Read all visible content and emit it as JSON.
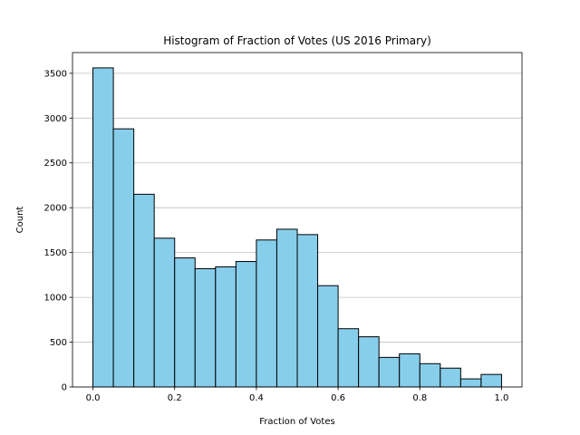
{
  "chart_data": {
    "type": "histogram",
    "title": "Histogram of Fraction of Votes (US 2016 Primary)",
    "x_label": "Fraction of Votes",
    "y_label": "Count",
    "bins": [
      0,
      0.05,
      0.1,
      0.15,
      0.2,
      0.25,
      0.3,
      0.35,
      0.4,
      0.45,
      0.5,
      0.55,
      0.6,
      0.65,
      0.7,
      0.75,
      0.8,
      0.85,
      0.9,
      0.95,
      1.0
    ],
    "values": [
      3560,
      2880,
      2150,
      1660,
      1440,
      1320,
      1340,
      1400,
      1640,
      1760,
      1700,
      1130,
      650,
      560,
      330,
      370,
      260,
      210,
      90,
      140
    ],
    "color": "#87ceeb",
    "edgecolor": "#000000",
    "xlim": [
      -0.05,
      1.05
    ],
    "ylim": [
      0,
      3731
    ],
    "xticks": [
      {
        "value": 0,
        "label": "0.0"
      },
      {
        "value": 0.2,
        "label": "0.2"
      },
      {
        "value": 0.4,
        "label": "0.4"
      },
      {
        "value": 0.6,
        "label": "0.6"
      },
      {
        "value": 0.8,
        "label": "0.8"
      },
      {
        "value": 1.0,
        "label": "1.0"
      }
    ],
    "yticks": [
      0,
      500,
      1000,
      1500,
      2000,
      2500,
      3000,
      3500
    ],
    "grid": "y"
  }
}
